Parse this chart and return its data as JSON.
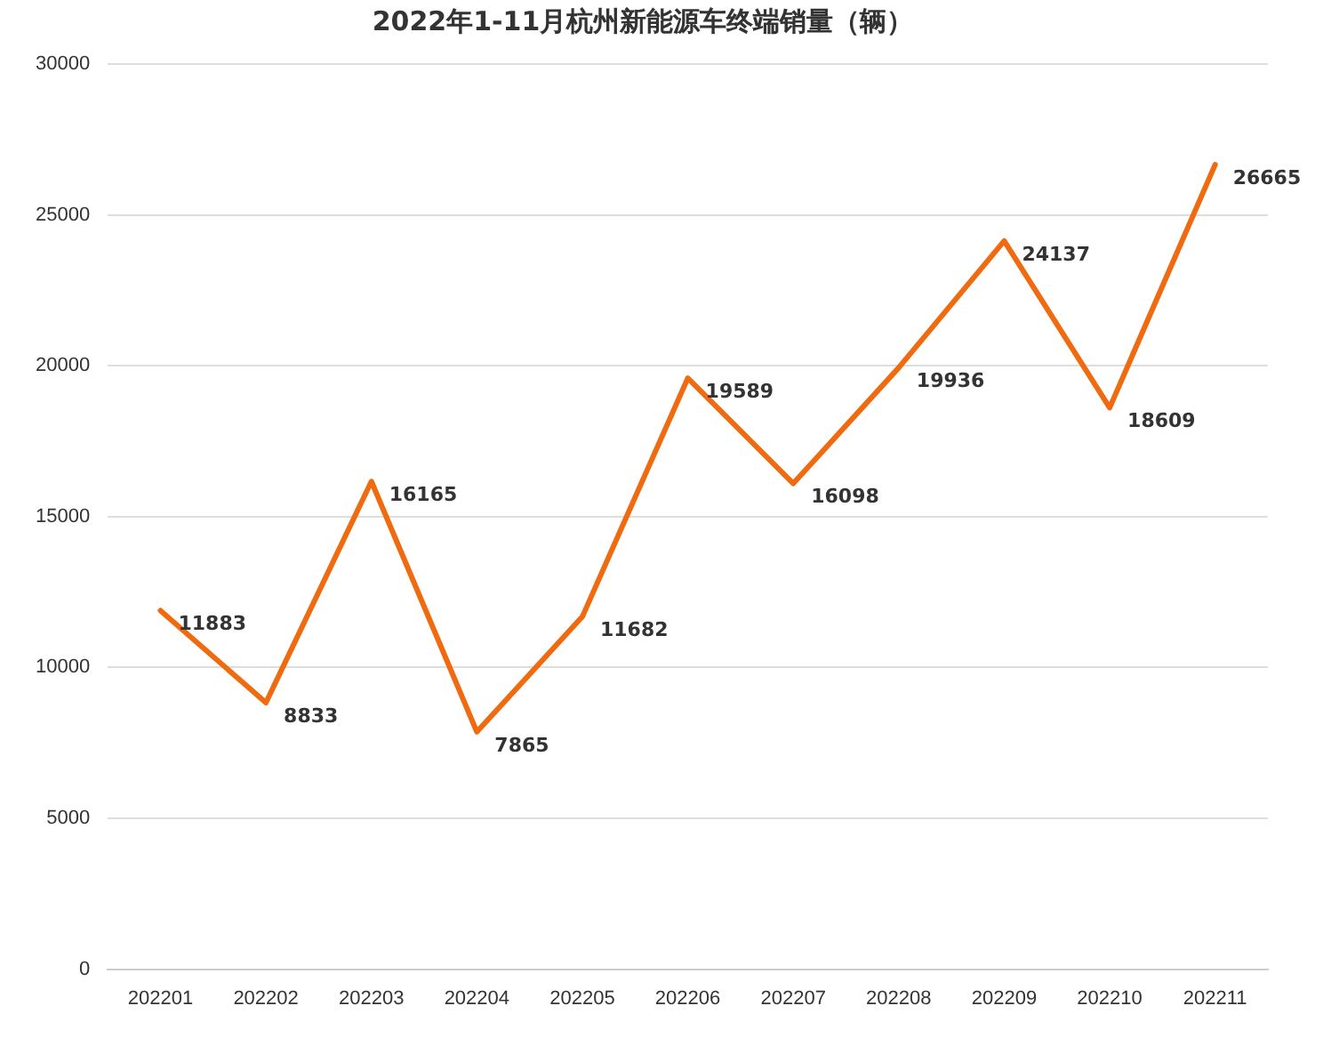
{
  "chart_data": {
    "type": "line",
    "title": "2022年1-11月杭州新能源车终端销量（辆）",
    "categories": [
      "202201",
      "202202",
      "202203",
      "202204",
      "202205",
      "202206",
      "202207",
      "202208",
      "202209",
      "202210",
      "202211"
    ],
    "series": [
      {
        "color": "#f06a0f",
        "values": [
          11883,
          8833,
          16165,
          7865,
          11682,
          19589,
          16098,
          19936,
          24137,
          18609,
          26665
        ]
      }
    ],
    "ylim": [
      0,
      30000
    ],
    "yticks": [
      0,
      5000,
      10000,
      15000,
      20000,
      25000,
      30000
    ],
    "grid": "y",
    "legend": false,
    "marker": "none",
    "line_style": "solid",
    "data_labels": true
  }
}
